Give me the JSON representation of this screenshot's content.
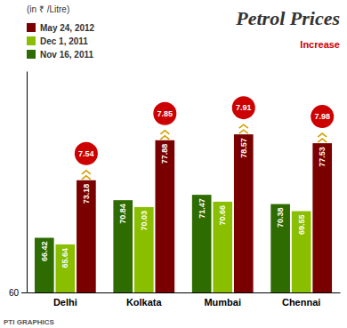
{
  "chart_data": {
    "type": "bar",
    "title": "Petrol Prices",
    "subtitle": "(in ₹ /Litre)",
    "categories": [
      "Delhi",
      "Kolkata",
      "Mumbai",
      "Chennai"
    ],
    "series": [
      {
        "name": "Nov 16, 2011",
        "color": "#2e6b00",
        "values": [
          66.42,
          70.84,
          71.47,
          70.38
        ]
      },
      {
        "name": "Dec 1, 2011",
        "color": "#8abf00",
        "values": [
          65.64,
          70.03,
          70.66,
          69.55
        ]
      },
      {
        "name": "May 24, 2012",
        "color": "#7a0000",
        "values": [
          73.18,
          77.88,
          78.57,
          77.53
        ]
      }
    ],
    "increase": {
      "values": [
        7.54,
        7.85,
        7.91,
        7.98
      ],
      "color": "#cc0000"
    },
    "annotations": [
      "Increase",
      "PTI GRAPHICS"
    ],
    "ylim": [
      60,
      86
    ],
    "yticks": [
      60
    ],
    "data_labels": true,
    "legend": "top-left",
    "grid": false
  }
}
